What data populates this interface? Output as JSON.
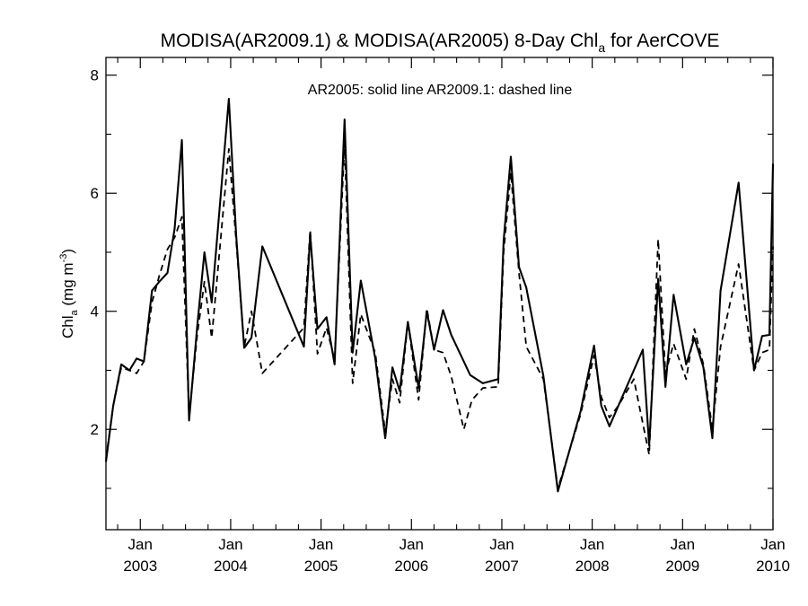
{
  "chart_data": {
    "type": "line",
    "title": {
      "main": "MODISA(AR2009.1) & MODISA(AR2005) 8-Day Chl",
      "sub": "a",
      "tail": " for AerCOVE"
    },
    "ylabel": {
      "main": "Chl",
      "sub": "a",
      "units": " (mg m",
      "exp": "-3",
      "close": ")"
    },
    "annotation": "AR2005: solid line   AR2009.1: dashed line",
    "xlim": [
      2002.62,
      2010.0
    ],
    "ylim": [
      0.3,
      8.3
    ],
    "yticks": [
      2,
      4,
      6,
      8
    ],
    "xticks": [
      {
        "month": "Jan",
        "year": "2003",
        "x": 2003.0
      },
      {
        "month": "Jan",
        "year": "2004",
        "x": 2004.0
      },
      {
        "month": "Jan",
        "year": "2005",
        "x": 2005.0
      },
      {
        "month": "Jan",
        "year": "2006",
        "x": 2006.0
      },
      {
        "month": "Jan",
        "year": "2007",
        "x": 2007.0
      },
      {
        "month": "Jan",
        "year": "2008",
        "x": 2008.0
      },
      {
        "month": "Jan",
        "year": "2009",
        "x": 2009.0
      },
      {
        "month": "Jan",
        "year": "2010",
        "x": 2010.0
      }
    ],
    "series": [
      {
        "name": "AR2005",
        "style": "solid",
        "color": "#000000",
        "points": [
          [
            2002.62,
            1.45
          ],
          [
            2002.7,
            2.4
          ],
          [
            2002.79,
            3.1
          ],
          [
            2002.88,
            3.0
          ],
          [
            2002.96,
            3.2
          ],
          [
            2003.04,
            3.15
          ],
          [
            2003.13,
            4.35
          ],
          [
            2003.21,
            4.5
          ],
          [
            2003.3,
            4.65
          ],
          [
            2003.38,
            5.4
          ],
          [
            2003.46,
            6.9
          ],
          [
            2003.54,
            2.15
          ],
          [
            2003.63,
            3.75
          ],
          [
            2003.71,
            5.0
          ],
          [
            2003.79,
            4.15
          ],
          [
            2003.98,
            7.6
          ],
          [
            2004.06,
            5.3
          ],
          [
            2004.15,
            3.38
          ],
          [
            2004.23,
            3.55
          ],
          [
            2004.35,
            5.1
          ],
          [
            2004.81,
            3.4
          ],
          [
            2004.88,
            5.3
          ],
          [
            2004.96,
            3.7
          ],
          [
            2005.06,
            3.9
          ],
          [
            2005.15,
            3.1
          ],
          [
            2005.26,
            7.25
          ],
          [
            2005.35,
            3.3
          ],
          [
            2005.44,
            4.52
          ],
          [
            2005.6,
            3.2
          ],
          [
            2005.71,
            1.85
          ],
          [
            2005.79,
            3.05
          ],
          [
            2005.87,
            2.65
          ],
          [
            2005.96,
            3.82
          ],
          [
            2006.08,
            2.7
          ],
          [
            2006.17,
            4.0
          ],
          [
            2006.25,
            3.35
          ],
          [
            2006.35,
            4.02
          ],
          [
            2006.44,
            3.6
          ],
          [
            2006.65,
            2.92
          ],
          [
            2006.79,
            2.78
          ],
          [
            2006.96,
            2.85
          ],
          [
            2007.02,
            5.2
          ],
          [
            2007.1,
            6.62
          ],
          [
            2007.19,
            4.75
          ],
          [
            2007.27,
            4.4
          ],
          [
            2007.46,
            2.9
          ],
          [
            2007.62,
            0.95
          ],
          [
            2007.87,
            2.3
          ],
          [
            2008.02,
            3.42
          ],
          [
            2008.1,
            2.4
          ],
          [
            2008.19,
            2.05
          ],
          [
            2008.29,
            2.4
          ],
          [
            2008.56,
            3.35
          ],
          [
            2008.63,
            1.73
          ],
          [
            2008.73,
            4.55
          ],
          [
            2008.81,
            2.72
          ],
          [
            2008.9,
            4.28
          ],
          [
            2009.04,
            3.1
          ],
          [
            2009.13,
            3.55
          ],
          [
            2009.23,
            3.05
          ],
          [
            2009.33,
            1.85
          ],
          [
            2009.42,
            4.35
          ],
          [
            2009.62,
            6.18
          ],
          [
            2009.79,
            3.0
          ],
          [
            2009.88,
            3.58
          ],
          [
            2009.96,
            3.6
          ],
          [
            2010.0,
            6.5
          ]
        ]
      },
      {
        "name": "AR2009.1",
        "style": "dashed",
        "color": "#000000",
        "points": [
          [
            2002.62,
            1.5
          ],
          [
            2002.7,
            2.4
          ],
          [
            2002.79,
            3.05
          ],
          [
            2002.88,
            3.0
          ],
          [
            2002.96,
            2.95
          ],
          [
            2003.04,
            3.15
          ],
          [
            2003.13,
            4.15
          ],
          [
            2003.21,
            4.6
          ],
          [
            2003.3,
            5.05
          ],
          [
            2003.38,
            5.25
          ],
          [
            2003.46,
            5.6
          ],
          [
            2003.54,
            2.22
          ],
          [
            2003.63,
            3.6
          ],
          [
            2003.71,
            4.5
          ],
          [
            2003.79,
            3.55
          ],
          [
            2003.98,
            6.75
          ],
          [
            2004.06,
            5.2
          ],
          [
            2004.15,
            3.4
          ],
          [
            2004.23,
            4.0
          ],
          [
            2004.35,
            2.95
          ],
          [
            2004.81,
            3.72
          ],
          [
            2004.88,
            5.38
          ],
          [
            2004.96,
            3.28
          ],
          [
            2005.06,
            3.72
          ],
          [
            2005.15,
            3.18
          ],
          [
            2005.26,
            6.85
          ],
          [
            2005.35,
            2.78
          ],
          [
            2005.44,
            3.95
          ],
          [
            2005.6,
            3.3
          ],
          [
            2005.71,
            1.95
          ],
          [
            2005.79,
            2.85
          ],
          [
            2005.87,
            2.45
          ],
          [
            2005.96,
            3.82
          ],
          [
            2006.08,
            2.5
          ],
          [
            2006.17,
            4.05
          ],
          [
            2006.25,
            3.35
          ],
          [
            2006.35,
            3.3
          ],
          [
            2006.44,
            2.9
          ],
          [
            2006.58,
            2.0
          ],
          [
            2006.67,
            2.5
          ],
          [
            2006.79,
            2.7
          ],
          [
            2006.96,
            2.72
          ],
          [
            2007.02,
            5.0
          ],
          [
            2007.1,
            6.35
          ],
          [
            2007.19,
            4.65
          ],
          [
            2007.27,
            3.4
          ],
          [
            2007.46,
            2.85
          ],
          [
            2007.62,
            1.0
          ],
          [
            2007.87,
            2.25
          ],
          [
            2008.02,
            3.25
          ],
          [
            2008.1,
            2.55
          ],
          [
            2008.19,
            2.2
          ],
          [
            2008.29,
            2.4
          ],
          [
            2008.46,
            2.85
          ],
          [
            2008.63,
            1.57
          ],
          [
            2008.73,
            5.22
          ],
          [
            2008.81,
            2.95
          ],
          [
            2008.9,
            3.45
          ],
          [
            2009.04,
            2.85
          ],
          [
            2009.13,
            3.7
          ],
          [
            2009.23,
            3.1
          ],
          [
            2009.33,
            2.0
          ],
          [
            2009.42,
            3.4
          ],
          [
            2009.62,
            4.8
          ],
          [
            2009.79,
            3.0
          ],
          [
            2009.88,
            3.3
          ],
          [
            2009.96,
            3.35
          ],
          [
            2010.0,
            5.1
          ]
        ]
      }
    ],
    "grid": false
  }
}
